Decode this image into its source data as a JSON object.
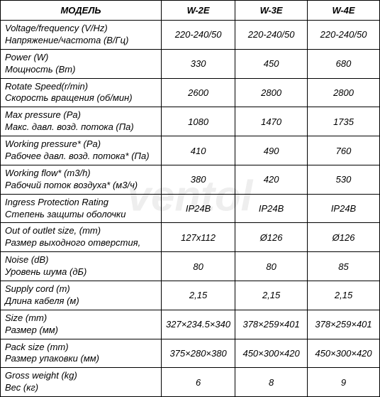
{
  "watermark": "ventol",
  "headers": [
    "МОДЕЛЬ",
    "W-2E",
    "W-3E",
    "W-4E"
  ],
  "rows": [
    {
      "label_en": "Voltage/frequency (V/Hz)",
      "label_ru": "Напряжение/частота (В/Гц)",
      "values": [
        "220-240/50",
        "220-240/50",
        "220-240/50"
      ]
    },
    {
      "label_en": "Power (W)",
      "label_ru": "Мощность (Вт)",
      "values": [
        "330",
        "450",
        "680"
      ]
    },
    {
      "label_en": "Rotate Speed(r/min)",
      "label_ru": "Скорость вращения (об/мин)",
      "values": [
        "2600",
        "2800",
        "2800"
      ]
    },
    {
      "label_en": "Max pressure (Pa)",
      "label_ru": "Макс. давл. возд. потока (Па)",
      "values": [
        "1080",
        "1470",
        "1735"
      ]
    },
    {
      "label_en": "Working pressure* (Pa)",
      "label_ru": "Рабочее давл. возд. потока* (Па)",
      "values": [
        "410",
        "490",
        "760"
      ]
    },
    {
      "label_en": "Working flow* (m3/h)",
      "label_ru": "Рабочий поток воздуха* (м3/ч)",
      "values": [
        "380",
        "420",
        "530"
      ]
    },
    {
      "label_en": "Ingress Protection Rating",
      "label_ru": "Степень защиты оболочки",
      "values": [
        "IP24B",
        "IP24B",
        "IP24B"
      ]
    },
    {
      "label_en": "Out of outlet size, (mm)",
      "label_ru": "Размер выходного отверстия,",
      "values": [
        "127x112",
        "Ø126",
        "Ø126"
      ]
    },
    {
      "label_en": "Noise (dB)",
      "label_ru": "Уровень шума (дБ)",
      "values": [
        "80",
        "80",
        "85"
      ]
    },
    {
      "label_en": "Supply cord (m)",
      "label_ru": "Длина кабеля (м)",
      "values": [
        "2,15",
        "2,15",
        "2,15"
      ]
    },
    {
      "label_en": "Size (mm)",
      "label_ru": "Размер (мм)",
      "values": [
        "327×234.5×340",
        "378×259×401",
        "378×259×401"
      ]
    },
    {
      "label_en": "Pack size (mm)",
      "label_ru": "Размер упаковки (мм)",
      "values": [
        "375×280×380",
        "450×300×420",
        "450×300×420"
      ]
    },
    {
      "label_en": "Gross weight (kg)",
      "label_ru": "Вес (кг)",
      "values": [
        "6",
        "8",
        "9"
      ]
    }
  ],
  "colors": {
    "border": "#000000",
    "background": "#ffffff",
    "text": "#000000",
    "watermark": "rgba(200,200,200,0.3)"
  },
  "font_sizes": {
    "header": 13,
    "cell": 13,
    "watermark": 60
  }
}
